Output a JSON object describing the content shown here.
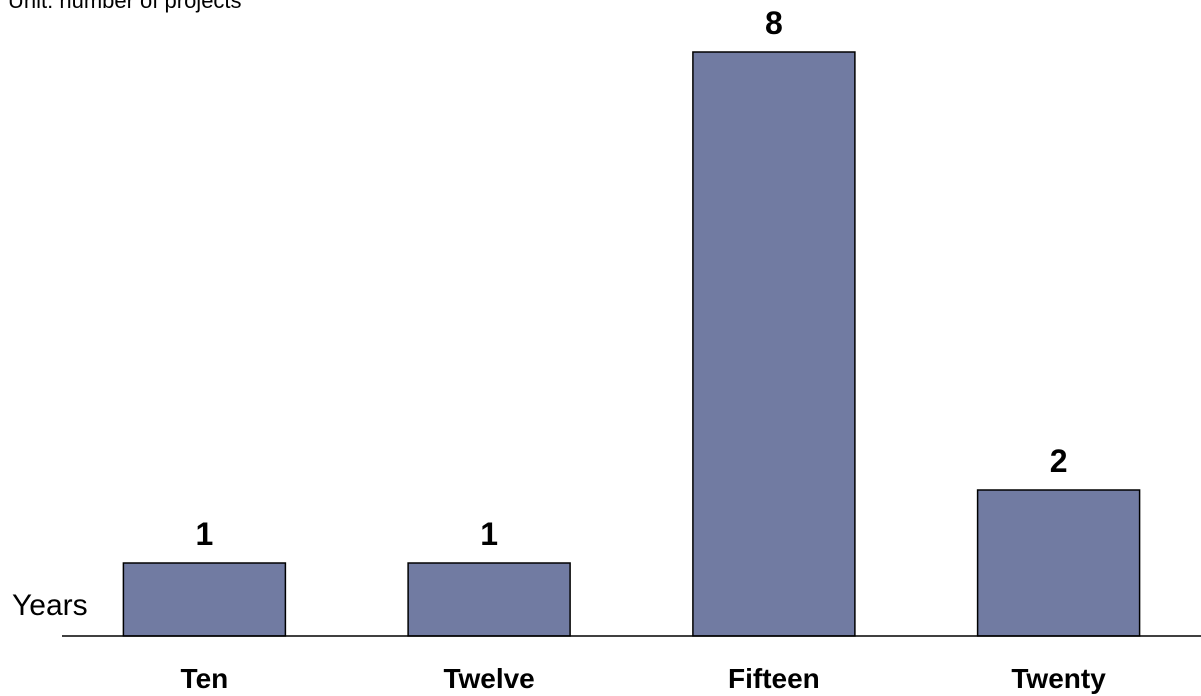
{
  "chart_data": {
    "type": "bar",
    "subtitle": "Unit: number of projects",
    "xlabel": "",
    "ylabel": "Years",
    "categories": [
      "Ten",
      "Twelve",
      "Fifteen",
      "Twenty"
    ],
    "values": [
      1,
      1,
      8,
      2
    ],
    "data_labels": [
      "1",
      "1",
      "8",
      "2"
    ],
    "ylim": [
      0,
      8
    ],
    "grid": false,
    "bar_color": "#717ba2"
  }
}
